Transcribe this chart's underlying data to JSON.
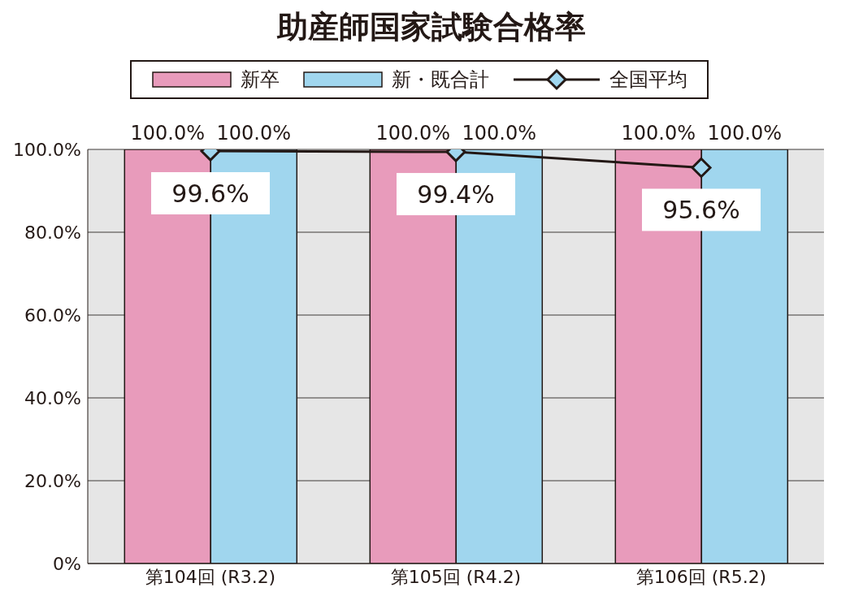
{
  "chart_data": {
    "type": "bar",
    "title": "助産師国家試験合格率",
    "categories": [
      "第104回 (R3.2)",
      "第105回 (R4.2)",
      "第106回 (R5.2)"
    ],
    "series": [
      {
        "name": "新卒",
        "color": "#e89bbb",
        "values": [
          100,
          100,
          100
        ],
        "value_labels": [
          "100.0%",
          "100.0%",
          "100.0%"
        ]
      },
      {
        "name": "新・既合計",
        "color": "#a0d6ee",
        "values": [
          100,
          100,
          100
        ],
        "value_labels": [
          "100.0%",
          "100.0%",
          "100.0%"
        ]
      },
      {
        "name": "全国平均",
        "type": "line",
        "color": "#231815",
        "values": [
          99.6,
          99.4,
          95.6
        ],
        "value_labels": [
          "99.6%",
          "99.4%",
          "95.6%"
        ]
      }
    ],
    "ylim": [
      0,
      100
    ],
    "yticks": [
      {
        "value": 0,
        "label": "0%"
      },
      {
        "value": 20,
        "label": "20.0%"
      },
      {
        "value": 40,
        "label": "40.0%"
      },
      {
        "value": 60,
        "label": "60.0%"
      },
      {
        "value": 80,
        "label": "80.0%"
      },
      {
        "value": 100,
        "label": "100.0%"
      }
    ],
    "grid": "y",
    "legend": "top",
    "marker": "diamond",
    "line_style": "solid"
  }
}
